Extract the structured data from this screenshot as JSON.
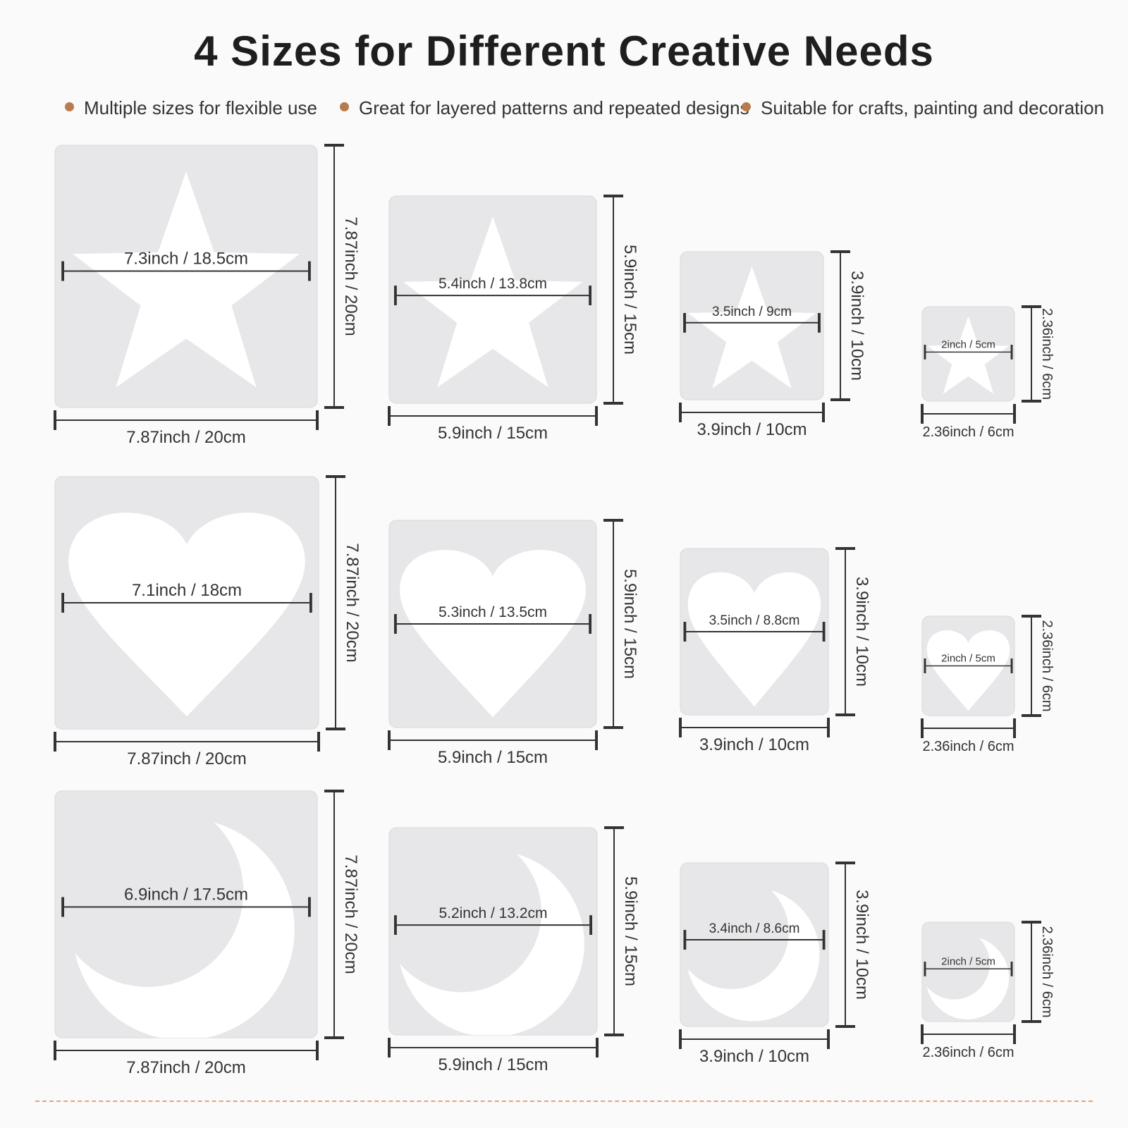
{
  "title": "4 Sizes for Different Creative Needs",
  "bullets": [
    "Multiple sizes for flexible use",
    "Great for layered patterns and repeated designs",
    "Suitable for crafts, painting and decoration"
  ],
  "colors": {
    "bullet_dot": "#b87b4f",
    "stencil_fill": "#e7e7e9",
    "cutout": "#ffffff",
    "dashed_line": "#e8a27a"
  },
  "rows": [
    {
      "shape": "star-icon",
      "stencils": [
        {
          "inner": "7.3inch / 18.5cm",
          "width": "7.87inch / 20cm",
          "height": "7.87inch / 20cm"
        },
        {
          "inner": "5.4inch / 13.8cm",
          "width": "5.9inch / 15cm",
          "height": "5.9inch / 15cm"
        },
        {
          "inner": "3.5inch / 9cm",
          "width": "3.9inch / 10cm",
          "height": "3.9inch / 10cm"
        },
        {
          "inner": "2inch / 5cm",
          "width": "2.36inch / 6cm",
          "height": "2.36inch / 6cm"
        }
      ]
    },
    {
      "shape": "heart-icon",
      "stencils": [
        {
          "inner": "7.1inch / 18cm",
          "width": "7.87inch / 20cm",
          "height": "7.87inch / 20cm"
        },
        {
          "inner": "5.3inch / 13.5cm",
          "width": "5.9inch / 15cm",
          "height": "5.9inch / 15cm"
        },
        {
          "inner": "3.5inch / 8.8cm",
          "width": "3.9inch / 10cm",
          "height": "3.9inch / 10cm"
        },
        {
          "inner": "2inch / 5cm",
          "width": "2.36inch / 6cm",
          "height": "2.36inch / 6cm"
        }
      ]
    },
    {
      "shape": "moon-icon",
      "stencils": [
        {
          "inner": "6.9inch / 17.5cm",
          "width": "7.87inch / 20cm",
          "height": "7.87inch / 20cm"
        },
        {
          "inner": "5.2inch / 13.2cm",
          "width": "5.9inch / 15cm",
          "height": "5.9inch / 15cm"
        },
        {
          "inner": "3.4inch / 8.6cm",
          "width": "3.9inch / 10cm",
          "height": "3.9inch / 10cm"
        },
        {
          "inner": "2inch / 5cm",
          "width": "2.36inch / 6cm",
          "height": "2.36inch / 6cm"
        }
      ]
    }
  ]
}
